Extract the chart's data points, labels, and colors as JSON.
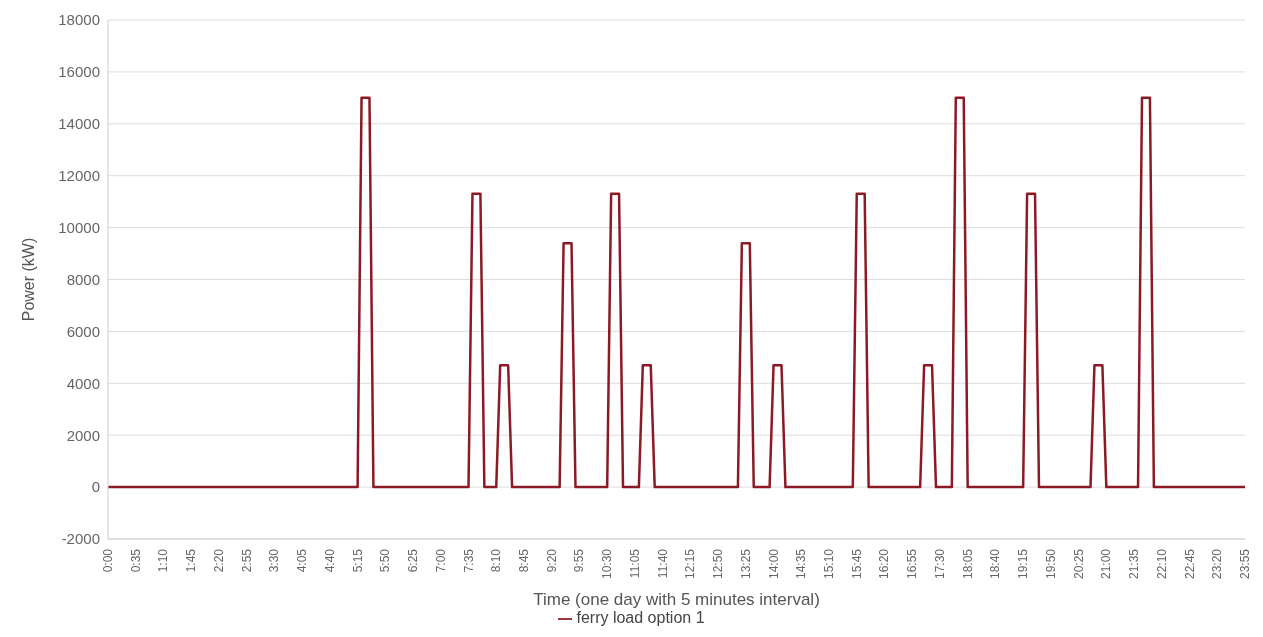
{
  "chart_data": {
    "type": "line",
    "xlabel": "Time (one day with 5 minutes interval)",
    "ylabel": "Power (kW)",
    "categories": [
      "0:00",
      null,
      null,
      null,
      null,
      null,
      null,
      "0:35",
      null,
      null,
      null,
      null,
      null,
      null,
      "1:10",
      null,
      null,
      null,
      null,
      null,
      null,
      "1:45",
      null,
      null,
      null,
      null,
      null,
      null,
      "2:20",
      null,
      null,
      null,
      null,
      null,
      null,
      "2:55",
      null,
      null,
      null,
      null,
      null,
      null,
      "3:30",
      null,
      null,
      null,
      null,
      null,
      null,
      "4:05",
      null,
      null,
      null,
      null,
      null,
      null,
      "4:40",
      null,
      null,
      null,
      null,
      null,
      null,
      "5:15",
      null,
      null,
      null,
      null,
      null,
      null,
      "5:50",
      null,
      null,
      null,
      null,
      null,
      null,
      "6:25",
      null,
      null,
      null,
      null,
      null,
      null,
      "7:00",
      null,
      null,
      null,
      null,
      null,
      null,
      "7:35",
      null,
      null,
      null,
      null,
      null,
      null,
      "8:10",
      null,
      null,
      null,
      null,
      null,
      null,
      "8:45",
      null,
      null,
      null,
      null,
      null,
      null,
      "9:20",
      null,
      null,
      null,
      null,
      null,
      null,
      "9:55",
      null,
      null,
      null,
      null,
      null,
      null,
      "10:30",
      null,
      null,
      null,
      null,
      null,
      null,
      "11:05",
      null,
      null,
      null,
      null,
      null,
      null,
      "11:40",
      null,
      null,
      null,
      null,
      null,
      null,
      "12:15",
      null,
      null,
      null,
      null,
      null,
      null,
      "12:50",
      null,
      null,
      null,
      null,
      null,
      null,
      "13:25",
      null,
      null,
      null,
      null,
      null,
      null,
      "14:00",
      null,
      null,
      null,
      null,
      null,
      null,
      "14:35",
      null,
      null,
      null,
      null,
      null,
      null,
      "15:10",
      null,
      null,
      null,
      null,
      null,
      null,
      "15:45",
      null,
      null,
      null,
      null,
      null,
      null,
      "16:20",
      null,
      null,
      null,
      null,
      null,
      null,
      "16:55",
      null,
      null,
      null,
      null,
      null,
      null,
      "17:30",
      null,
      null,
      null,
      null,
      null,
      null,
      "18:05",
      null,
      null,
      null,
      null,
      null,
      null,
      "18:40",
      null,
      null,
      null,
      null,
      null,
      null,
      "19:15",
      null,
      null,
      null,
      null,
      null,
      null,
      "19:50",
      null,
      null,
      null,
      null,
      null,
      null,
      "20:25",
      null,
      null,
      null,
      null,
      null,
      null,
      "21:00",
      null,
      null,
      null,
      null,
      null,
      null,
      "21:35",
      null,
      null,
      null,
      null,
      null,
      null,
      "22:10",
      null,
      null,
      null,
      null,
      null,
      null,
      "22:45",
      null,
      null,
      null,
      null,
      null,
      null,
      "23:20",
      null,
      null,
      null,
      null,
      null,
      null,
      "23:55"
    ],
    "series": [
      {
        "name": "ferry load option 1",
        "color": "#8b1a24",
        "values": [
          0,
          0,
          0,
          0,
          0,
          0,
          0,
          0,
          0,
          0,
          0,
          0,
          0,
          0,
          0,
          0,
          0,
          0,
          0,
          0,
          0,
          0,
          0,
          0,
          0,
          0,
          0,
          0,
          0,
          0,
          0,
          0,
          0,
          0,
          0,
          0,
          0,
          0,
          0,
          0,
          0,
          0,
          0,
          0,
          0,
          0,
          0,
          0,
          0,
          0,
          0,
          0,
          0,
          0,
          0,
          0,
          0,
          0,
          0,
          0,
          0,
          0,
          0,
          0,
          15000,
          15000,
          15000,
          0,
          0,
          0,
          0,
          0,
          0,
          0,
          0,
          0,
          0,
          0,
          0,
          0,
          0,
          0,
          0,
          0,
          0,
          0,
          0,
          0,
          0,
          0,
          0,
          0,
          11300,
          11300,
          11300,
          0,
          0,
          0,
          0,
          4700,
          4700,
          4700,
          0,
          0,
          0,
          0,
          0,
          0,
          0,
          0,
          0,
          0,
          0,
          0,
          0,
          9400,
          9400,
          9400,
          0,
          0,
          0,
          0,
          0,
          0,
          0,
          0,
          0,
          11300,
          11300,
          11300,
          0,
          0,
          0,
          0,
          0,
          4700,
          4700,
          4700,
          0,
          0,
          0,
          0,
          0,
          0,
          0,
          0,
          0,
          0,
          0,
          0,
          0,
          0,
          0,
          0,
          0,
          0,
          0,
          0,
          0,
          0,
          9400,
          9400,
          9400,
          0,
          0,
          0,
          0,
          0,
          4700,
          4700,
          4700,
          0,
          0,
          0,
          0,
          0,
          0,
          0,
          0,
          0,
          0,
          0,
          0,
          0,
          0,
          0,
          0,
          0,
          0,
          11300,
          11300,
          11300,
          0,
          0,
          0,
          0,
          0,
          0,
          0,
          0,
          0,
          0,
          0,
          0,
          0,
          0,
          4700,
          4700,
          4700,
          0,
          0,
          0,
          0,
          0,
          15000,
          15000,
          15000,
          0,
          0,
          0,
          0,
          0,
          0,
          0,
          0,
          0,
          0,
          0,
          0,
          0,
          0,
          0,
          11300,
          11300,
          11300,
          0,
          0,
          0,
          0,
          0,
          0,
          0,
          0,
          0,
          0,
          0,
          0,
          0,
          0,
          4700,
          4700,
          4700,
          0,
          0,
          0,
          0,
          0,
          0,
          0,
          0,
          0,
          15000,
          15000,
          15000,
          0,
          0,
          0,
          0,
          0,
          0,
          0,
          0,
          0,
          0,
          0,
          0,
          0,
          0,
          0,
          0,
          0,
          0,
          0,
          0,
          0,
          0,
          0,
          0
        ]
      }
    ],
    "ylim": [
      -2000,
      18000
    ],
    "yticks": [
      -2000,
      0,
      2000,
      4000,
      6000,
      8000,
      10000,
      12000,
      14000,
      16000,
      18000
    ],
    "grid": "y",
    "legend": "bottom",
    "marker": "none",
    "line_style": "solid"
  }
}
